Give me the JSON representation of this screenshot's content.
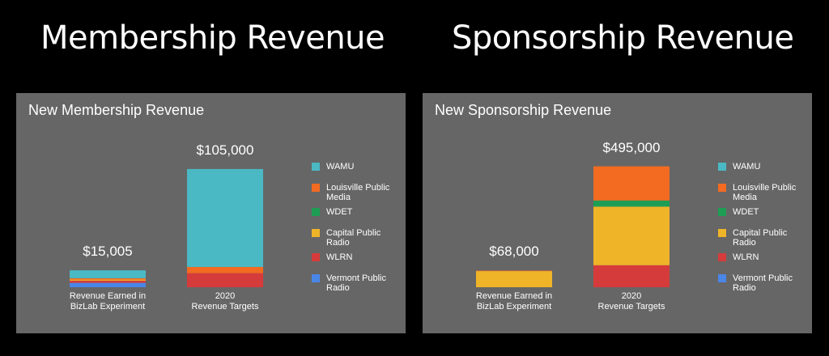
{
  "headings": {
    "left": "Membership Revenue",
    "right": "Sponsorship Revenue"
  },
  "legend_colors": {
    "WAMU": "#4ab9c4",
    "Louisville Public Media": "#f26b21",
    "WDET": "#1e9e55",
    "Capital Public Radio": "#f0b429",
    "WLRN": "#d63b3b",
    "Vermont Public Radio": "#4a86e8"
  },
  "chart_data": [
    {
      "type": "bar",
      "stacked": true,
      "title": "New Membership Revenue",
      "categories": [
        [
          "Revenue Earned in",
          "BizLab Experiment"
        ],
        [
          "2020",
          "Revenue Targets"
        ]
      ],
      "totals": [
        "$15,005",
        "$105,000"
      ],
      "total_values": [
        15005,
        105000
      ],
      "ylim": [
        0,
        115000
      ],
      "legend_position": "right",
      "grid": false,
      "series": [
        {
          "name": "Vermont Public Radio",
          "values": [
            3900,
            0
          ]
        },
        {
          "name": "WLRN",
          "values": [
            1900,
            12500
          ]
        },
        {
          "name": "Capital Public Radio",
          "values": [
            1000,
            0
          ]
        },
        {
          "name": "WDET",
          "values": [
            0,
            0
          ]
        },
        {
          "name": "Louisville Public Media",
          "values": [
            1200,
            5500
          ]
        },
        {
          "name": "WAMU",
          "values": [
            7005,
            87000
          ]
        }
      ]
    },
    {
      "type": "bar",
      "stacked": true,
      "title": "New Sponsorship Revenue",
      "categories": [
        [
          "Revenue Earned in",
          "BizLab Experiment"
        ],
        [
          "2020",
          "Revenue Targets"
        ]
      ],
      "totals": [
        "$68,000",
        "$495,000"
      ],
      "total_values": [
        68000,
        495000
      ],
      "ylim": [
        0,
        530000
      ],
      "legend_position": "right",
      "grid": false,
      "series": [
        {
          "name": "Vermont Public Radio",
          "values": [
            0,
            0
          ]
        },
        {
          "name": "WLRN",
          "values": [
            0,
            90000
          ]
        },
        {
          "name": "Capital Public Radio",
          "values": [
            66000,
            240000
          ]
        },
        {
          "name": "WDET",
          "values": [
            0,
            25000
          ]
        },
        {
          "name": "Louisville Public Media",
          "values": [
            2000,
            140000
          ]
        },
        {
          "name": "WAMU",
          "values": [
            0,
            0
          ]
        }
      ]
    }
  ],
  "legend": [
    {
      "name": "WAMU",
      "lines": [
        "WAMU"
      ]
    },
    {
      "name": "Louisville Public Media",
      "lines": [
        "Louisville Public",
        "Media"
      ]
    },
    {
      "name": "WDET",
      "lines": [
        "WDET"
      ]
    },
    {
      "name": "Capital Public Radio",
      "lines": [
        "Capital Public",
        "Radio"
      ]
    },
    {
      "name": "WLRN",
      "lines": [
        "WLRN"
      ]
    },
    {
      "name": "Vermont Public Radio",
      "lines": [
        "Vermont Public",
        "Radio"
      ]
    }
  ]
}
